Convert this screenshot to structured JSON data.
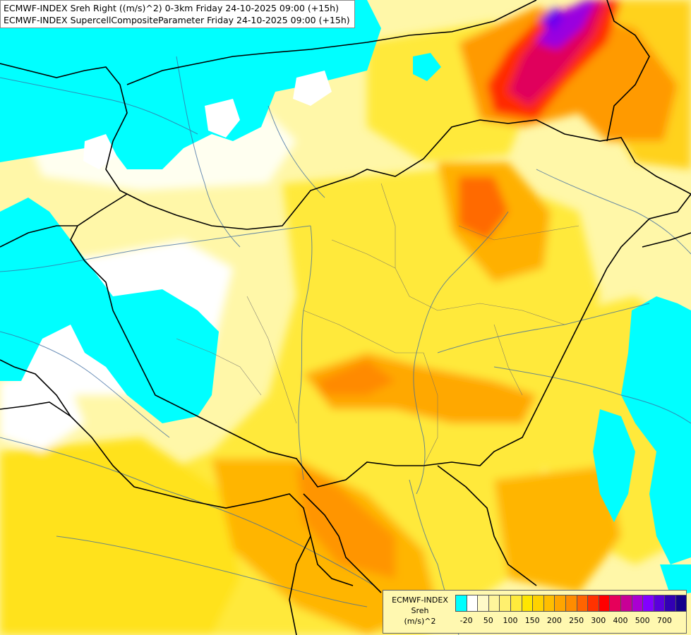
{
  "header": {
    "line1": "ECMWF-INDEX Sreh Right ((m/s)^2) 0-3km Friday 24-10-2025 09:00 (+15h)",
    "line2": "ECMWF-INDEX SupercellCompositeParameter Friday 24-10-2025 09:00 (+15h)"
  },
  "legend": {
    "title_line1": "ECMWF-INDEX",
    "title_line2": "Sreh",
    "title_line3": "(m/s)^2",
    "colors": [
      "#00ffff",
      "#ffffff",
      "#fffac8",
      "#fff59b",
      "#fff06e",
      "#ffeb3c",
      "#ffe600",
      "#ffd200",
      "#ffbe00",
      "#ffa500",
      "#ff8c00",
      "#ff6400",
      "#ff3200",
      "#ff0000",
      "#e6005a",
      "#c80096",
      "#aa00d2",
      "#8200ff",
      "#5a00dc",
      "#3200b4",
      "#14008c"
    ],
    "labels": [
      {
        "text": "-20",
        "slot": 1
      },
      {
        "text": "50",
        "slot": 3
      },
      {
        "text": "100",
        "slot": 5
      },
      {
        "text": "150",
        "slot": 7
      },
      {
        "text": "200",
        "slot": 9
      },
      {
        "text": "250",
        "slot": 11
      },
      {
        "text": "300",
        "slot": 13
      },
      {
        "text": "400",
        "slot": 15
      },
      {
        "text": "500",
        "slot": 17
      },
      {
        "text": "700",
        "slot": 19
      }
    ]
  }
}
